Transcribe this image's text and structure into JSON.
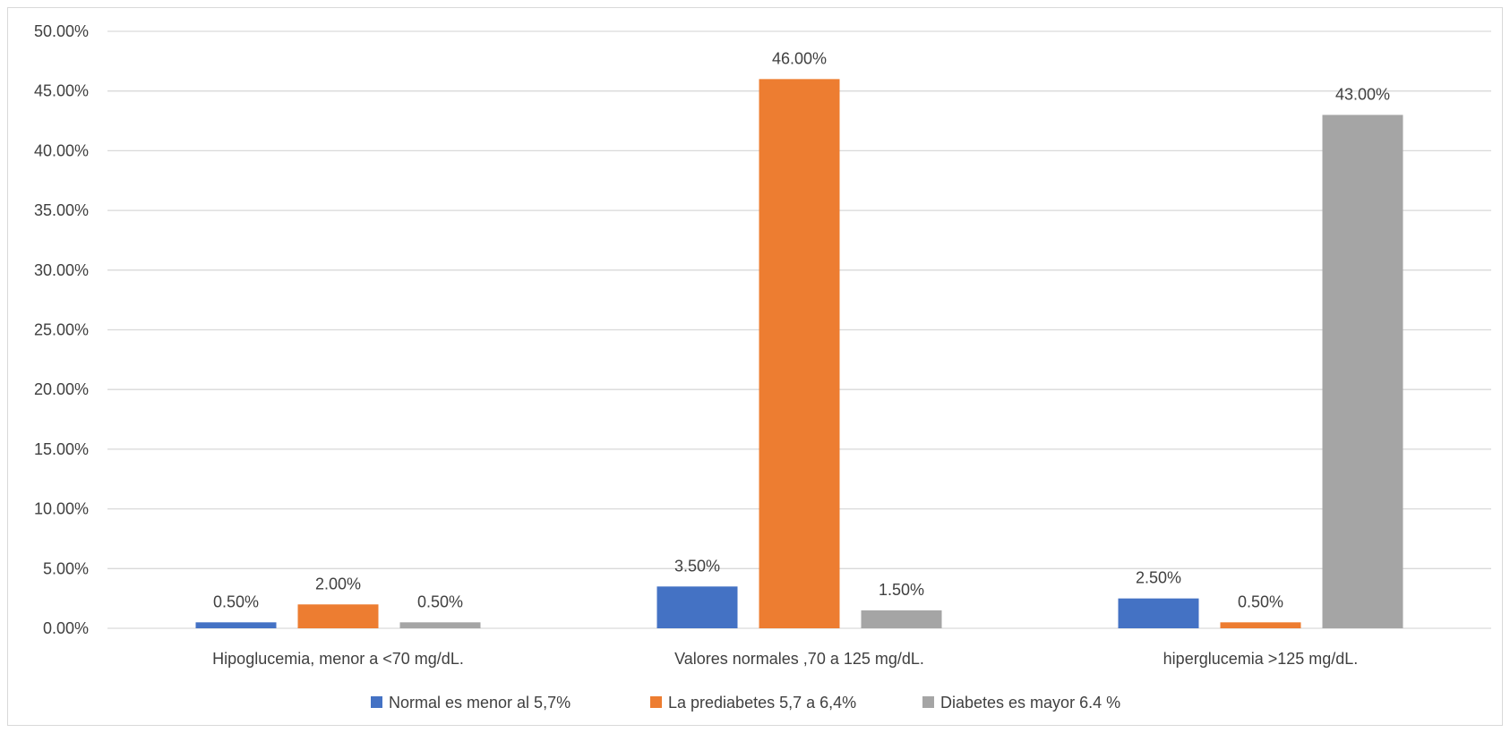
{
  "chart_data": {
    "type": "bar",
    "categories": [
      "Hipoglucemia, menor a <70 mg/dL.",
      "Valores normales ,70 a 125 mg/dL.",
      "hiperglucemia >125 mg/dL."
    ],
    "series": [
      {
        "name": "Normal es menor al 5,7%",
        "color": "#4472c4",
        "values": [
          0.5,
          3.5,
          2.5
        ],
        "labels": [
          "0.50%",
          "3.50%",
          "2.50%"
        ]
      },
      {
        "name": "La prediabetes 5,7 a 6,4%",
        "color": "#ed7d31",
        "values": [
          2.0,
          46.0,
          0.5
        ],
        "labels": [
          "2.00%",
          "46.00%",
          "0.50%"
        ]
      },
      {
        "name": "Diabetes es mayor 6.4 %",
        "color": "#a5a5a5",
        "values": [
          0.5,
          1.5,
          43.0
        ],
        "labels": [
          "0.50%",
          "1.50%",
          "43.00%"
        ]
      }
    ],
    "y_ticks": [
      "0.00%",
      "5.00%",
      "10.00%",
      "15.00%",
      "20.00%",
      "25.00%",
      "30.00%",
      "35.00%",
      "40.00%",
      "45.00%",
      "50.00%"
    ],
    "ylim": [
      0,
      50
    ],
    "title": "",
    "xlabel": "",
    "ylabel": "",
    "grid": true,
    "legend_position": "bottom",
    "gridline_color": "#d9d9d9",
    "text_color": "#404040"
  }
}
